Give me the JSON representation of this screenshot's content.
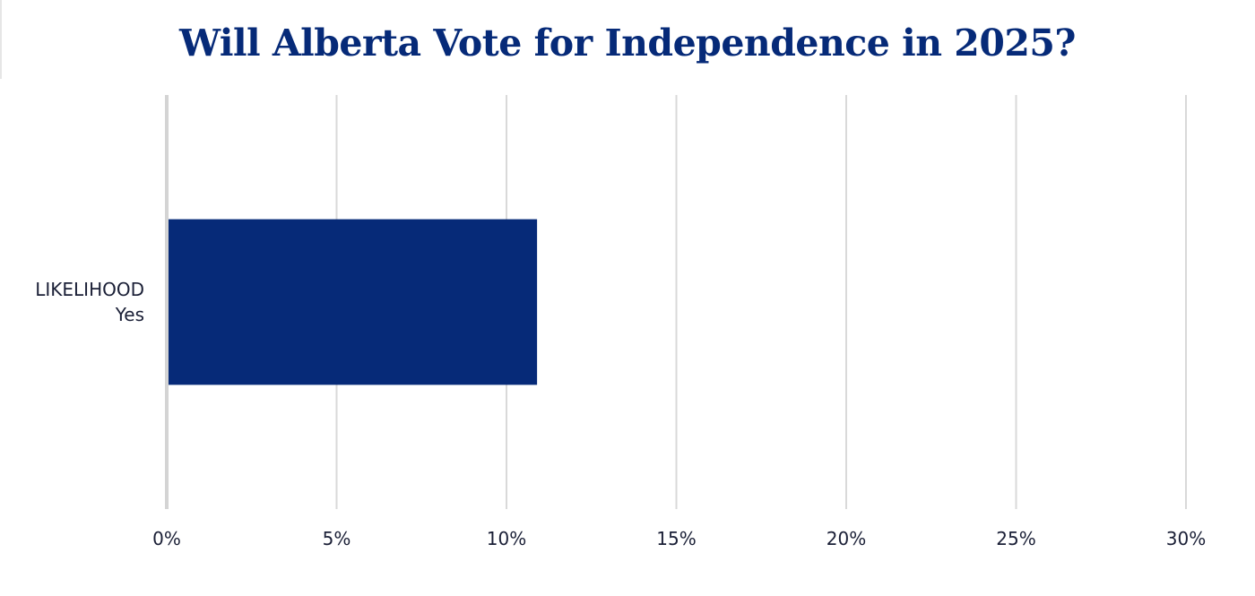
{
  "chart_data": {
    "type": "bar",
    "orientation": "horizontal",
    "title": "Will Alberta Vote for Independence in 2025?",
    "xlabel": "",
    "ylabel": "",
    "categories": [
      [
        "LIKELIHOOD",
        "Yes"
      ]
    ],
    "values": [
      10.9
    ],
    "xlim": [
      0,
      30
    ],
    "ticks": [
      0,
      5,
      10,
      15,
      20,
      25,
      30
    ],
    "tick_labels": [
      "0%",
      "5%",
      "10%",
      "15%",
      "20%",
      "25%",
      "30%"
    ],
    "grid": true,
    "legend": "none",
    "colors": {
      "bar": "#062a78",
      "grid": "#d9d9d9",
      "axis": "#d4d4d4",
      "title": "#062a78",
      "text": "#1a1f36"
    }
  }
}
